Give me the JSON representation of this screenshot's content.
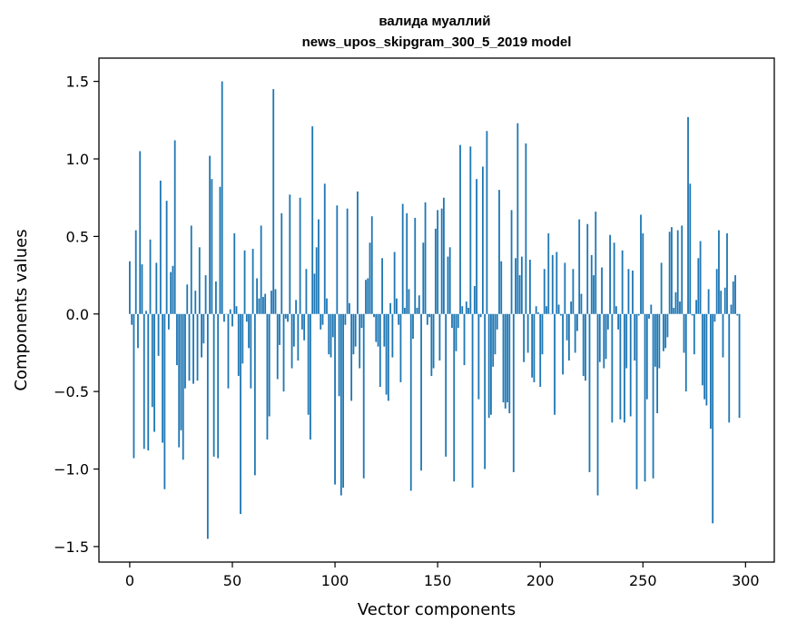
{
  "chart_data": {
    "type": "bar",
    "title": "валида муаллий\nnews_upos_skipgram_300_5_2019 model",
    "xlabel": "Vector components",
    "ylabel": "Components values",
    "xlim": [
      -15,
      314
    ],
    "ylim": [
      -1.6,
      1.65
    ],
    "xticks": [
      0,
      50,
      100,
      150,
      200,
      250,
      300
    ],
    "yticks": [
      -1.5,
      -1.0,
      -0.5,
      0.0,
      0.5,
      1.0,
      1.5
    ],
    "ytick_labels": [
      "−1.5",
      "−1.0",
      "−0.5",
      "0.0",
      "0.5",
      "1.0",
      "1.5"
    ],
    "bar_color": "#1f77b4",
    "grid": false,
    "legend": "none",
    "values": [
      0.34,
      -0.07,
      -0.93,
      0.54,
      -0.22,
      1.05,
      0.32,
      -0.87,
      0.02,
      -0.88,
      0.48,
      -0.6,
      -0.76,
      0.33,
      -0.27,
      0.86,
      -0.83,
      -1.13,
      0.73,
      -0.1,
      0.27,
      0.31,
      1.12,
      -0.33,
      -0.86,
      -0.75,
      -0.94,
      -0.48,
      0.19,
      -0.43,
      0.57,
      -0.45,
      0.15,
      -0.43,
      0.43,
      -0.28,
      -0.19,
      0.25,
      -1.45,
      1.02,
      0.87,
      -0.92,
      0.21,
      -0.93,
      0.82,
      1.5,
      -0.05,
      0.0,
      -0.48,
      0.03,
      -0.08,
      0.52,
      0.05,
      -0.4,
      -1.29,
      -0.32,
      0.41,
      -0.05,
      -0.22,
      -0.48,
      0.42,
      -1.04,
      0.23,
      0.1,
      0.57,
      0.11,
      0.13,
      -0.81,
      -0.66,
      0.15,
      1.45,
      0.16,
      -0.42,
      -0.2,
      0.65,
      -0.5,
      -0.03,
      -0.05,
      0.77,
      -0.35,
      -0.21,
      0.09,
      -0.3,
      0.75,
      -0.1,
      -0.17,
      0.29,
      -0.65,
      -0.81,
      1.21,
      0.26,
      0.43,
      0.61,
      -0.1,
      -0.07,
      0.84,
      0.1,
      -0.26,
      -0.28,
      -0.15,
      -1.1,
      0.7,
      -0.53,
      -1.17,
      -1.12,
      -0.07,
      0.68,
      0.07,
      -0.56,
      -0.26,
      -0.21,
      0.79,
      -0.35,
      -0.09,
      -1.06,
      0.22,
      0.23,
      0.46,
      0.63,
      -0.02,
      -0.18,
      -0.21,
      -0.47,
      0.36,
      -0.21,
      -0.52,
      -0.56,
      0.07,
      -0.28,
      0.4,
      0.1,
      -0.07,
      -0.44,
      0.71,
      0.04,
      0.65,
      0.16,
      -1.14,
      -0.16,
      0.62,
      0.04,
      0.12,
      -1.01,
      0.46,
      0.72,
      -0.07,
      -0.02,
      -0.4,
      -0.35,
      0.55,
      0.67,
      -0.3,
      0.68,
      0.75,
      -0.92,
      0.37,
      0.43,
      -0.09,
      -1.08,
      -0.24,
      -0.09,
      1.09,
      0.05,
      -0.33,
      0.08,
      0.04,
      1.08,
      -1.12,
      0.18,
      0.87,
      -0.55,
      -0.02,
      0.95,
      -1.0,
      1.18,
      -0.67,
      -0.65,
      -0.34,
      -0.26,
      -0.1,
      0.8,
      0.34,
      -0.57,
      -0.61,
      -0.57,
      -0.64,
      0.67,
      -1.02,
      0.36,
      1.23,
      0.25,
      0.37,
      -0.31,
      1.1,
      -0.25,
      0.35,
      -0.41,
      -0.44,
      0.05,
      0.01,
      -0.47,
      -0.26,
      0.29,
      0.05,
      0.52,
      0.0,
      0.38,
      -0.65,
      0.4,
      0.06,
      -0.01,
      -0.39,
      0.33,
      -0.17,
      -0.3,
      0.08,
      0.29,
      -0.25,
      -0.11,
      0.61,
      0.13,
      -0.4,
      -0.43,
      0.58,
      -1.02,
      0.38,
      0.25,
      0.66,
      -1.17,
      -0.31,
      0.3,
      -0.35,
      -0.29,
      -0.1,
      0.51,
      -0.7,
      0.46,
      0.05,
      -0.1,
      -0.68,
      0.41,
      -0.7,
      -0.35,
      0.29,
      -0.66,
      0.28,
      -0.3,
      -1.13,
      -0.01,
      0.64,
      0.52,
      -1.08,
      -0.55,
      -0.03,
      0.06,
      -1.06,
      -0.34,
      -0.64,
      -0.35,
      0.33,
      -0.24,
      -0.22,
      -0.15,
      0.53,
      0.56,
      0.04,
      0.14,
      0.54,
      0.08,
      0.57,
      -0.25,
      -0.5,
      1.27,
      0.84,
      -0.01,
      -0.26,
      0.09,
      0.36,
      0.47,
      -0.46,
      -0.55,
      -0.59,
      0.16,
      -0.74,
      -1.35,
      -0.05,
      0.29,
      0.54,
      0.15,
      -0.28,
      0.17,
      0.52,
      -0.7,
      0.06,
      0.21,
      0.25,
      -0.01,
      -0.67
    ]
  }
}
